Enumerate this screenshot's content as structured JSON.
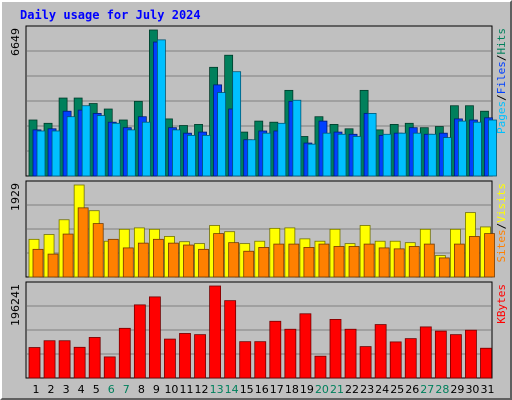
{
  "title": "Daily usage for July 2024",
  "colors": {
    "hits": "#00805c",
    "files": "#0040ff",
    "pages": "#00c0ff",
    "visits": "#ffff00",
    "sites": "#ff8000",
    "kbytes": "#ff0000",
    "weekend_label": "#00805c",
    "weekday_label": "#000000",
    "title": "#0000ff"
  },
  "chart_data": [
    {
      "type": "bar",
      "panel": "hits-files-pages",
      "ymax_label": "6649",
      "ylim": [
        0,
        6649
      ],
      "legend": [
        {
          "text": "Pages",
          "color": "#00c0ff"
        },
        {
          "text": "/",
          "color": "#000000"
        },
        {
          "text": "Files",
          "color": "#0040ff"
        },
        {
          "text": "/",
          "color": "#000000"
        },
        {
          "text": "Hits",
          "color": "#00805c"
        }
      ],
      "categories": [
        "1",
        "2",
        "3",
        "4",
        "5",
        "6",
        "7",
        "8",
        "9",
        "10",
        "11",
        "12",
        "13",
        "14",
        "15",
        "16",
        "17",
        "18",
        "19",
        "20",
        "21",
        "22",
        "23",
        "24",
        "25",
        "26",
        "27",
        "28",
        "29",
        "30",
        "31"
      ],
      "weekend_days": [
        6,
        7,
        13,
        14,
        20,
        21,
        27,
        28
      ],
      "series": [
        {
          "name": "Hits",
          "values": [
            2550,
            2400,
            3550,
            3550,
            3300,
            3050,
            2550,
            3400,
            6649,
            2600,
            2300,
            2350,
            4950,
            5500,
            2000,
            2500,
            2450,
            3900,
            1800,
            2700,
            2350,
            2150,
            3900,
            2100,
            2350,
            2400,
            2200,
            2250,
            3200,
            3200,
            2950
          ]
        },
        {
          "name": "Files",
          "values": [
            2100,
            2150,
            2950,
            3000,
            2850,
            2450,
            2200,
            2700,
            6100,
            2200,
            1950,
            2000,
            4150,
            3050,
            1650,
            2050,
            2050,
            3400,
            1500,
            2500,
            2000,
            1900,
            2850,
            1850,
            1950,
            2200,
            1900,
            1950,
            2600,
            2550,
            2650
          ]
        },
        {
          "name": "Pages",
          "values": [
            2050,
            2050,
            2700,
            3200,
            2750,
            2400,
            2100,
            2450,
            6200,
            2100,
            1850,
            1850,
            3800,
            4750,
            1650,
            1950,
            2400,
            3450,
            1450,
            1950,
            1900,
            1800,
            2850,
            1900,
            1950,
            1950,
            1900,
            1750,
            2500,
            2450,
            2550
          ]
        }
      ]
    },
    {
      "type": "bar",
      "panel": "visits-sites",
      "ymax_label": "1929",
      "ylim": [
        0,
        1929
      ],
      "legend": [
        {
          "text": "Sites",
          "color": "#ff8000"
        },
        {
          "text": "/",
          "color": "#000000"
        },
        {
          "text": "Visits",
          "color": "#ffff00"
        }
      ],
      "categories": [
        "1",
        "2",
        "3",
        "4",
        "5",
        "6",
        "7",
        "8",
        "9",
        "10",
        "11",
        "12",
        "13",
        "14",
        "15",
        "16",
        "17",
        "18",
        "19",
        "20",
        "21",
        "22",
        "23",
        "24",
        "25",
        "26",
        "27",
        "28",
        "29",
        "30",
        "31"
      ],
      "series": [
        {
          "name": "Visits",
          "values": [
            790,
            890,
            1200,
            1929,
            1390,
            750,
            1000,
            1030,
            1000,
            850,
            740,
            700,
            1080,
            950,
            700,
            750,
            1020,
            1030,
            800,
            750,
            1000,
            700,
            1080,
            750,
            750,
            720,
            1000,
            450,
            1000,
            1350,
            1050
          ]
        },
        {
          "name": "Sites",
          "values": [
            580,
            480,
            900,
            1450,
            1120,
            790,
            610,
            710,
            790,
            710,
            670,
            580,
            910,
            720,
            540,
            620,
            690,
            690,
            620,
            690,
            640,
            640,
            690,
            610,
            590,
            640,
            690,
            400,
            690,
            850,
            910
          ]
        }
      ]
    },
    {
      "type": "bar",
      "panel": "kbytes",
      "ymax_label": "196241",
      "ylim": [
        0,
        196241
      ],
      "legend": [
        {
          "text": "KBytes",
          "color": "#ff0000"
        }
      ],
      "categories": [
        "1",
        "2",
        "3",
        "4",
        "5",
        "6",
        "7",
        "8",
        "9",
        "10",
        "11",
        "12",
        "13",
        "14",
        "15",
        "16",
        "17",
        "18",
        "19",
        "20",
        "21",
        "22",
        "23",
        "24",
        "25",
        "26",
        "27",
        "28",
        "29",
        "30",
        "31"
      ],
      "series": [
        {
          "name": "KBytes",
          "values": [
            65000,
            79500,
            79500,
            65500,
            86500,
            45000,
            106000,
            156000,
            173000,
            83000,
            95000,
            92500,
            196241,
            165000,
            77500,
            77500,
            121000,
            104000,
            137000,
            46500,
            125000,
            104000,
            67000,
            114000,
            77000,
            84000,
            109000,
            100000,
            92500,
            102000,
            63500
          ]
        }
      ]
    }
  ]
}
